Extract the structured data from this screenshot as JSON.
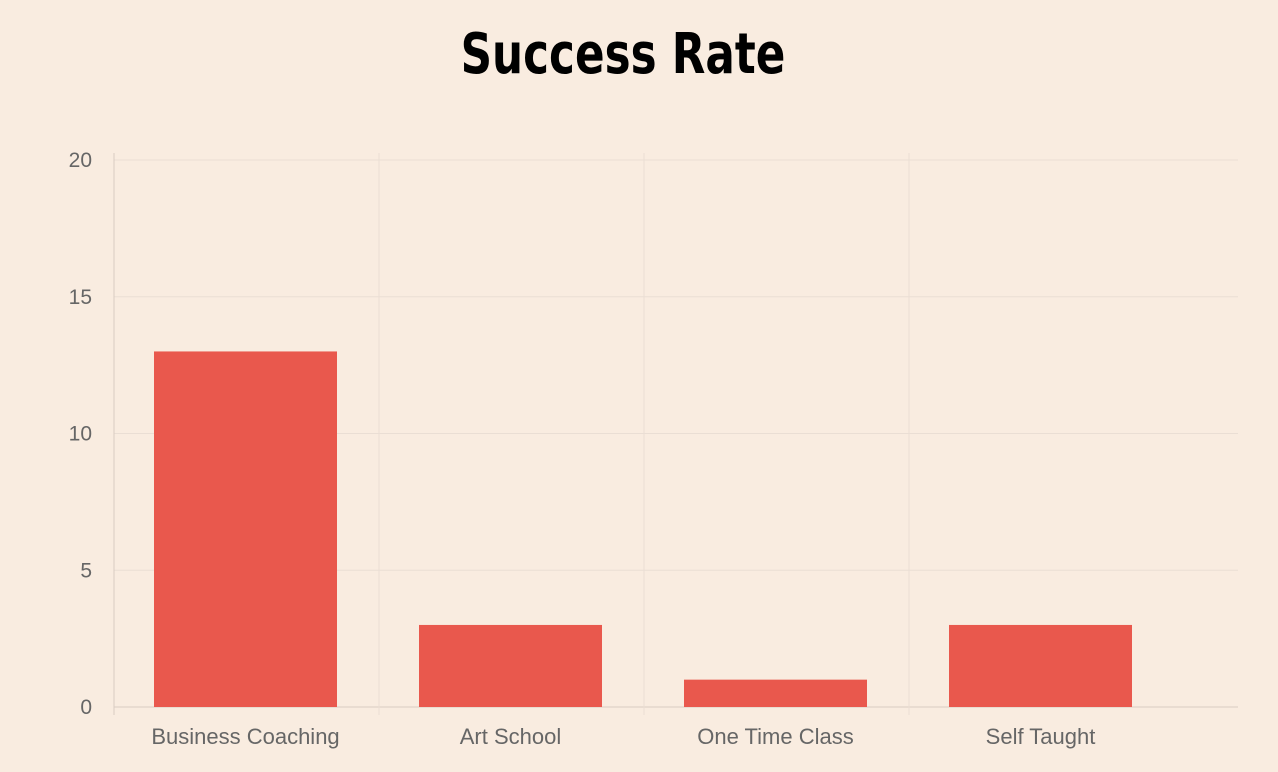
{
  "chart_data": {
    "type": "bar",
    "title": "Success Rate",
    "categories": [
      "Business Coaching",
      "Art School",
      "One Time Class",
      "Self Taught"
    ],
    "values": [
      13,
      3,
      1,
      3
    ],
    "ylim": [
      0,
      20
    ],
    "yticks": [
      "0",
      "5",
      "10",
      "15",
      "20"
    ],
    "xlabel": "",
    "ylabel": "",
    "grid": true,
    "legend": "none",
    "colors": {
      "bar": "#e9584d",
      "grid": "#eaded4",
      "axis": "#d9ccc2",
      "background": "#f9ece0",
      "tick_text": "#666666"
    }
  }
}
